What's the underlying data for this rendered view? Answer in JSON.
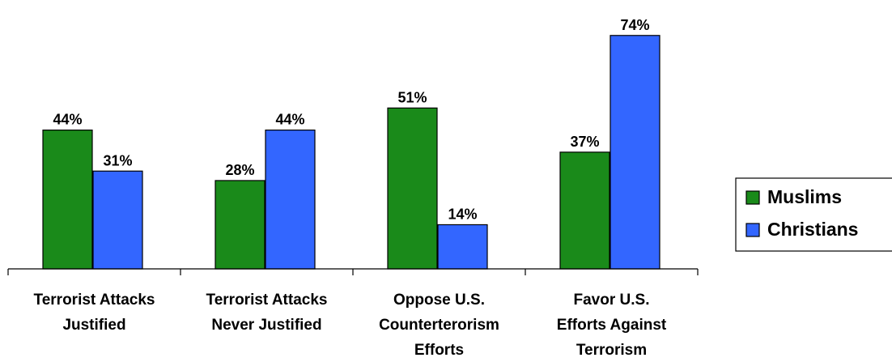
{
  "chart_data": {
    "type": "bar",
    "categories": [
      [
        "Terrorist Attacks",
        "Justified"
      ],
      [
        "Terrorist Attacks",
        "Never Justified"
      ],
      [
        "Oppose U.S.",
        "Counterterorism",
        "Efforts"
      ],
      [
        "Favor U.S.",
        "Efforts Against",
        "Terrorism"
      ]
    ],
    "series": [
      {
        "name": "Muslims",
        "values": [
          44,
          28,
          51,
          37
        ],
        "labels": [
          "44%",
          "28%",
          "51%",
          "37%"
        ],
        "color": "#1a8a1a"
      },
      {
        "name": "Christians",
        "values": [
          31,
          44,
          14,
          74
        ],
        "labels": [
          "31%",
          "44%",
          "14%",
          "74%"
        ],
        "color": "#3366ff"
      }
    ],
    "ylim": [
      0,
      80
    ],
    "grid": false,
    "legend_position": "right"
  }
}
